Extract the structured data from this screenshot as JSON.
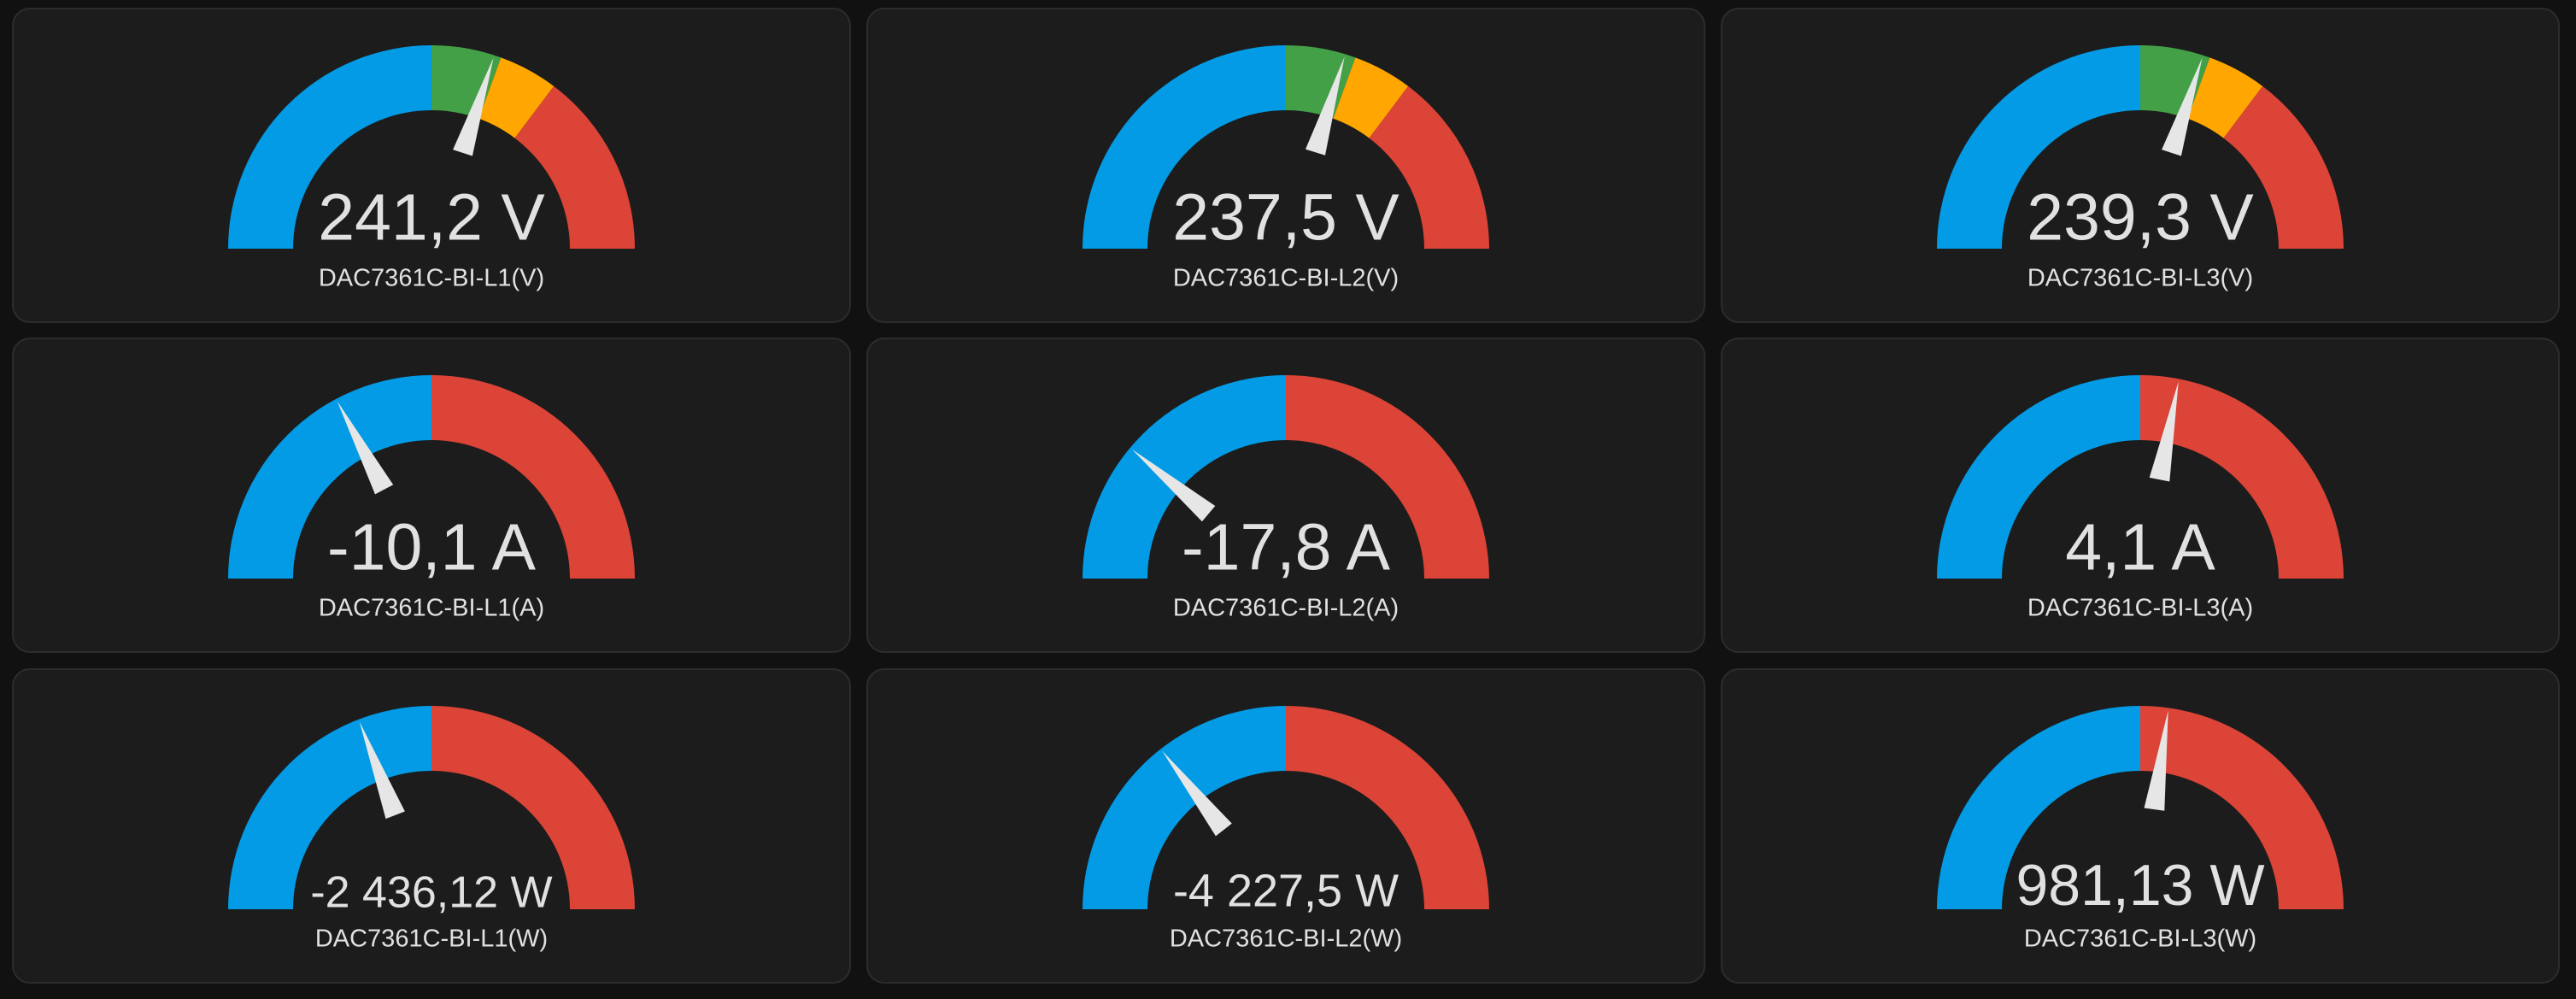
{
  "cards": [
    {
      "value": "241,2 V",
      "name": "DAC7361C-BI-L1(V)"
    },
    {
      "value": "237,5 V",
      "name": "DAC7361C-BI-L2(V)"
    },
    {
      "value": "239,3 V",
      "name": "DAC7361C-BI-L3(V)"
    },
    {
      "value": "-10,1 A",
      "name": "DAC7361C-BI-L1(A)"
    },
    {
      "value": "-17,8 A",
      "name": "DAC7361C-BI-L2(A)"
    },
    {
      "value": "4,1 A",
      "name": "DAC7361C-BI-L3(A)"
    },
    {
      "value": "-2 436,12 W",
      "name": "DAC7361C-BI-L1(W)"
    },
    {
      "value": "-4 227,5 W",
      "name": "DAC7361C-BI-L2(W)"
    },
    {
      "value": "981,13 W",
      "name": "DAC7361C-BI-L3(W)"
    }
  ]
}
